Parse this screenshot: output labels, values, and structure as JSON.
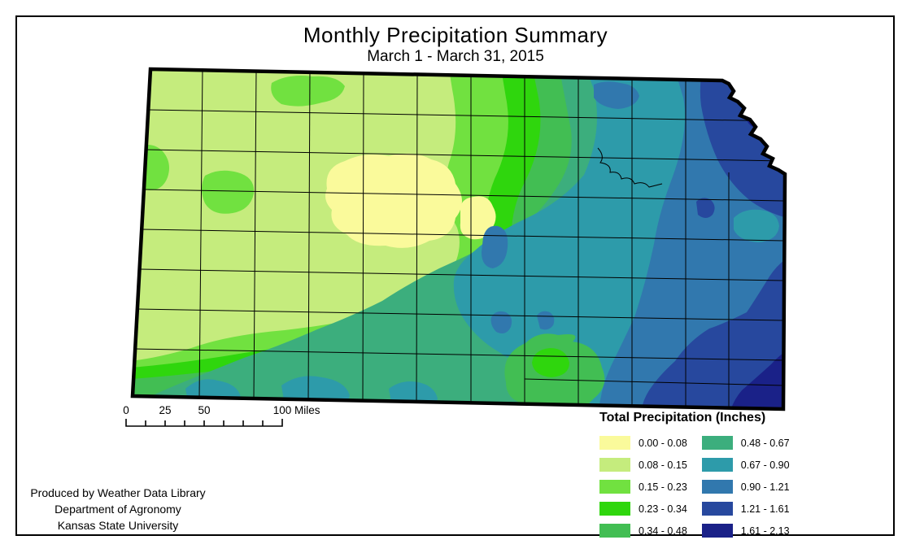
{
  "title": "Monthly Precipitation Summary",
  "subtitle": "March 1 - March 31, 2015",
  "legend": {
    "title": "Total Precipitation (Inches)",
    "entries": [
      {
        "label": "0.00 - 0.08",
        "color": "#FAFA9B"
      },
      {
        "label": "0.08 - 0.15",
        "color": "#C5EC7D"
      },
      {
        "label": "0.15 - 0.23",
        "color": "#71E140"
      },
      {
        "label": "0.23 - 0.34",
        "color": "#2FD60D"
      },
      {
        "label": "0.34 - 0.48",
        "color": "#42BE53"
      },
      {
        "label": "0.48 - 0.67",
        "color": "#3CAE7D"
      },
      {
        "label": "0.67 - 0.90",
        "color": "#2D9BAA"
      },
      {
        "label": "0.90 - 1.21",
        "color": "#3178AE"
      },
      {
        "label": "1.21 - 1.61",
        "color": "#27489E"
      },
      {
        "label": "1.61 - 2.13",
        "color": "#1A2188"
      }
    ]
  },
  "scalebar": {
    "labels": [
      "0",
      "25",
      "50",
      "100"
    ],
    "unit": "Miles"
  },
  "attribution": {
    "line1": "Produced by Weather Data Library",
    "line2": "Department of Agronomy",
    "line3": "Kansas State University"
  }
}
